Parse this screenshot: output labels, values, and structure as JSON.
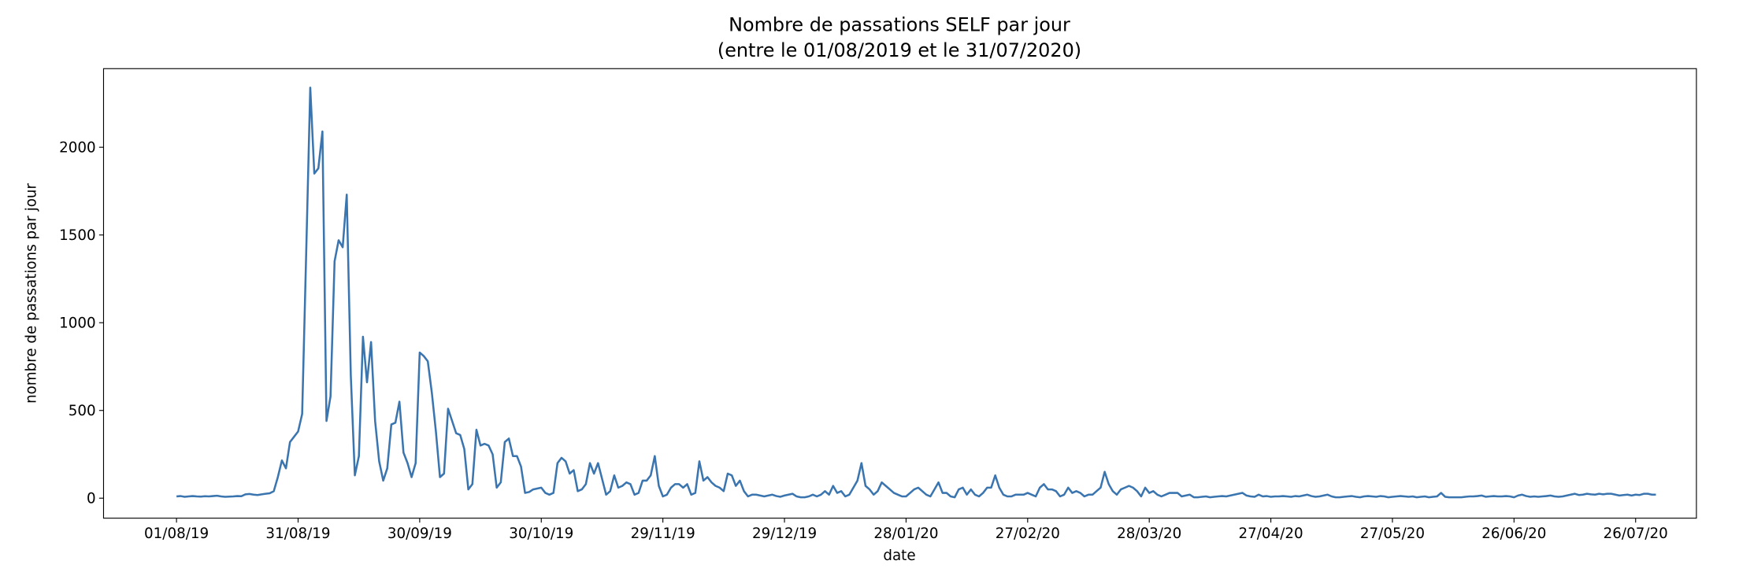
{
  "chart_data": {
    "type": "line",
    "title": "Nombre de passations SELF par jour",
    "subtitle": "(entre le 01/08/2019 et le 31/07/2020)",
    "xlabel": "date",
    "ylabel": "nombre de passations par jour",
    "color": "#3b75af",
    "xlim": [
      "2019-07-14",
      "2020-08-10"
    ],
    "ylim": [
      -114,
      2448
    ],
    "yticks": [
      0,
      500,
      1000,
      1500,
      2000
    ],
    "xticks": [
      {
        "value": "2019-08-01",
        "label": "01/08/19"
      },
      {
        "value": "2019-08-31",
        "label": "31/08/19"
      },
      {
        "value": "2019-09-30",
        "label": "30/09/19"
      },
      {
        "value": "2019-10-30",
        "label": "30/10/19"
      },
      {
        "value": "2019-11-29",
        "label": "29/11/19"
      },
      {
        "value": "2019-12-29",
        "label": "29/12/19"
      },
      {
        "value": "2020-01-28",
        "label": "28/01/20"
      },
      {
        "value": "2020-02-27",
        "label": "27/02/20"
      },
      {
        "value": "2020-03-28",
        "label": "28/03/20"
      },
      {
        "value": "2020-04-27",
        "label": "27/04/20"
      },
      {
        "value": "2020-05-27",
        "label": "27/05/20"
      },
      {
        "value": "2020-06-26",
        "label": "26/06/20"
      },
      {
        "value": "2020-07-26",
        "label": "26/07/20"
      }
    ],
    "x": [
      "2019-08-01",
      "2019-08-02",
      "2019-08-03",
      "2019-08-04",
      "2019-08-05",
      "2019-08-06",
      "2019-08-07",
      "2019-08-08",
      "2019-08-09",
      "2019-08-10",
      "2019-08-11",
      "2019-08-12",
      "2019-08-13",
      "2019-08-14",
      "2019-08-15",
      "2019-08-16",
      "2019-08-17",
      "2019-08-18",
      "2019-08-19",
      "2019-08-20",
      "2019-08-21",
      "2019-08-22",
      "2019-08-23",
      "2019-08-24",
      "2019-08-25",
      "2019-08-26",
      "2019-08-27",
      "2019-08-28",
      "2019-08-29",
      "2019-08-30",
      "2019-08-31",
      "2019-09-01",
      "2019-09-02",
      "2019-09-03",
      "2019-09-04",
      "2019-09-05",
      "2019-09-06",
      "2019-09-07",
      "2019-09-08",
      "2019-09-09",
      "2019-09-10",
      "2019-09-11",
      "2019-09-12",
      "2019-09-13",
      "2019-09-14",
      "2019-09-15",
      "2019-09-16",
      "2019-09-17",
      "2019-09-18",
      "2019-09-19",
      "2019-09-20",
      "2019-09-21",
      "2019-09-22",
      "2019-09-23",
      "2019-09-24",
      "2019-09-25",
      "2019-09-26",
      "2019-09-27",
      "2019-09-28",
      "2019-09-29",
      "2019-09-30",
      "2019-10-01",
      "2019-10-02",
      "2019-10-03",
      "2019-10-04",
      "2019-10-05",
      "2019-10-06",
      "2019-10-07",
      "2019-10-08",
      "2019-10-09",
      "2019-10-10",
      "2019-10-11",
      "2019-10-12",
      "2019-10-13",
      "2019-10-14",
      "2019-10-15",
      "2019-10-16",
      "2019-10-17",
      "2019-10-18",
      "2019-10-19",
      "2019-10-20",
      "2019-10-21",
      "2019-10-22",
      "2019-10-23",
      "2019-10-24",
      "2019-10-25",
      "2019-10-26",
      "2019-10-27",
      "2019-10-28",
      "2019-10-29",
      "2019-10-30",
      "2019-10-31",
      "2019-11-01",
      "2019-11-02",
      "2019-11-03",
      "2019-11-04",
      "2019-11-05",
      "2019-11-06",
      "2019-11-07",
      "2019-11-08",
      "2019-11-09",
      "2019-11-10",
      "2019-11-11",
      "2019-11-12",
      "2019-11-13",
      "2019-11-14",
      "2019-11-15",
      "2019-11-16",
      "2019-11-17",
      "2019-11-18",
      "2019-11-19",
      "2019-11-20",
      "2019-11-21",
      "2019-11-22",
      "2019-11-23",
      "2019-11-24",
      "2019-11-25",
      "2019-11-26",
      "2019-11-27",
      "2019-11-28",
      "2019-11-29",
      "2019-11-30",
      "2019-12-01",
      "2019-12-02",
      "2019-12-03",
      "2019-12-04",
      "2019-12-05",
      "2019-12-06",
      "2019-12-07",
      "2019-12-08",
      "2019-12-09",
      "2019-12-10",
      "2019-12-11",
      "2019-12-12",
      "2019-12-13",
      "2019-12-14",
      "2019-12-15",
      "2019-12-16",
      "2019-12-17",
      "2019-12-18",
      "2019-12-19",
      "2019-12-20",
      "2019-12-21",
      "2019-12-22",
      "2019-12-23",
      "2019-12-24",
      "2019-12-25",
      "2019-12-26",
      "2019-12-27",
      "2019-12-28",
      "2019-12-29",
      "2019-12-30",
      "2019-12-31",
      "2020-01-01",
      "2020-01-02",
      "2020-01-03",
      "2020-01-04",
      "2020-01-05",
      "2020-01-06",
      "2020-01-07",
      "2020-01-08",
      "2020-01-09",
      "2020-01-10",
      "2020-01-11",
      "2020-01-12",
      "2020-01-13",
      "2020-01-14",
      "2020-01-15",
      "2020-01-16",
      "2020-01-17",
      "2020-01-18",
      "2020-01-19",
      "2020-01-20",
      "2020-01-21",
      "2020-01-22",
      "2020-01-23",
      "2020-01-24",
      "2020-01-25",
      "2020-01-26",
      "2020-01-27",
      "2020-01-28",
      "2020-01-29",
      "2020-01-30",
      "2020-01-31",
      "2020-02-01",
      "2020-02-02",
      "2020-02-03",
      "2020-02-04",
      "2020-02-05",
      "2020-02-06",
      "2020-02-07",
      "2020-02-08",
      "2020-02-09",
      "2020-02-10",
      "2020-02-11",
      "2020-02-12",
      "2020-02-13",
      "2020-02-14",
      "2020-02-15",
      "2020-02-16",
      "2020-02-17",
      "2020-02-18",
      "2020-02-19",
      "2020-02-20",
      "2020-02-21",
      "2020-02-22",
      "2020-02-23",
      "2020-02-24",
      "2020-02-25",
      "2020-02-26",
      "2020-02-27",
      "2020-02-28",
      "2020-02-29",
      "2020-03-01",
      "2020-03-02",
      "2020-03-03",
      "2020-03-04",
      "2020-03-05",
      "2020-03-06",
      "2020-03-07",
      "2020-03-08",
      "2020-03-09",
      "2020-03-10",
      "2020-03-11",
      "2020-03-12",
      "2020-03-13",
      "2020-03-14",
      "2020-03-15",
      "2020-03-16",
      "2020-03-17",
      "2020-03-18",
      "2020-03-19",
      "2020-03-20",
      "2020-03-21",
      "2020-03-22",
      "2020-03-23",
      "2020-03-24",
      "2020-03-25",
      "2020-03-26",
      "2020-03-27",
      "2020-03-28",
      "2020-03-29",
      "2020-03-30",
      "2020-03-31",
      "2020-04-01",
      "2020-04-02",
      "2020-04-03",
      "2020-04-04",
      "2020-04-05",
      "2020-04-06",
      "2020-04-07",
      "2020-04-08",
      "2020-04-09",
      "2020-04-10",
      "2020-04-11",
      "2020-04-12",
      "2020-04-13",
      "2020-04-14",
      "2020-04-15",
      "2020-04-16",
      "2020-04-17",
      "2020-04-18",
      "2020-04-19",
      "2020-04-20",
      "2020-04-21",
      "2020-04-22",
      "2020-04-23",
      "2020-04-24",
      "2020-04-25",
      "2020-04-26",
      "2020-04-27",
      "2020-04-28",
      "2020-04-29",
      "2020-04-30",
      "2020-05-01",
      "2020-05-02",
      "2020-05-03",
      "2020-05-04",
      "2020-05-05",
      "2020-05-06",
      "2020-05-07",
      "2020-05-08",
      "2020-05-09",
      "2020-05-10",
      "2020-05-11",
      "2020-05-12",
      "2020-05-13",
      "2020-05-14",
      "2020-05-15",
      "2020-05-16",
      "2020-05-17",
      "2020-05-18",
      "2020-05-19",
      "2020-05-20",
      "2020-05-21",
      "2020-05-22",
      "2020-05-23",
      "2020-05-24",
      "2020-05-25",
      "2020-05-26",
      "2020-05-27",
      "2020-05-28",
      "2020-05-29",
      "2020-05-30",
      "2020-05-31",
      "2020-06-01",
      "2020-06-02",
      "2020-06-03",
      "2020-06-04",
      "2020-06-05",
      "2020-06-06",
      "2020-06-07",
      "2020-06-08",
      "2020-06-09",
      "2020-06-10",
      "2020-06-11",
      "2020-06-12",
      "2020-06-13",
      "2020-06-14",
      "2020-06-15",
      "2020-06-16",
      "2020-06-17",
      "2020-06-18",
      "2020-06-19",
      "2020-06-20",
      "2020-06-21",
      "2020-06-22",
      "2020-06-23",
      "2020-06-24",
      "2020-06-25",
      "2020-06-26",
      "2020-06-27",
      "2020-06-28",
      "2020-06-29",
      "2020-06-30",
      "2020-07-01",
      "2020-07-02",
      "2020-07-03",
      "2020-07-04",
      "2020-07-05",
      "2020-07-06",
      "2020-07-07",
      "2020-07-08",
      "2020-07-09",
      "2020-07-10",
      "2020-07-11",
      "2020-07-12",
      "2020-07-13",
      "2020-07-14",
      "2020-07-15",
      "2020-07-16",
      "2020-07-17",
      "2020-07-18",
      "2020-07-19",
      "2020-07-20",
      "2020-07-21",
      "2020-07-22",
      "2020-07-23",
      "2020-07-24",
      "2020-07-25",
      "2020-07-26",
      "2020-07-27",
      "2020-07-28",
      "2020-07-29",
      "2020-07-30",
      "2020-07-31"
    ],
    "values": [
      10,
      12,
      8,
      10,
      12,
      10,
      9,
      11,
      10,
      12,
      14,
      10,
      8,
      9,
      10,
      12,
      11,
      22,
      24,
      20,
      18,
      22,
      25,
      28,
      40,
      120,
      215,
      170,
      320,
      350,
      380,
      480,
      1400,
      2340,
      1850,
      1880,
      2090,
      440,
      580,
      1350,
      1470,
      1430,
      1730,
      700,
      130,
      240,
      920,
      660,
      890,
      440,
      210,
      100,
      170,
      420,
      430,
      550,
      260,
      200,
      120,
      200,
      830,
      810,
      780,
      600,
      380,
      120,
      140,
      510,
      440,
      370,
      360,
      280,
      50,
      80,
      390,
      300,
      310,
      300,
      250,
      60,
      90,
      320,
      340,
      240,
      240,
      180,
      30,
      35,
      50,
      55,
      60,
      30,
      20,
      30,
      200,
      230,
      210,
      140,
      160,
      40,
      50,
      80,
      200,
      140,
      200,
      110,
      20,
      40,
      130,
      60,
      70,
      90,
      80,
      20,
      30,
      100,
      100,
      130,
      240,
      70,
      10,
      20,
      60,
      80,
      80,
      60,
      80,
      20,
      30,
      210,
      100,
      120,
      90,
      70,
      60,
      40,
      140,
      130,
      70,
      100,
      40,
      10,
      20,
      20,
      15,
      10,
      15,
      20,
      12,
      8,
      15,
      20,
      25,
      10,
      5,
      5,
      10,
      20,
      10,
      20,
      40,
      20,
      70,
      30,
      40,
      10,
      20,
      60,
      100,
      200,
      70,
      50,
      20,
      40,
      90,
      70,
      50,
      30,
      20,
      10,
      10,
      30,
      50,
      60,
      40,
      20,
      10,
      50,
      90,
      30,
      30,
      10,
      5,
      50,
      60,
      20,
      50,
      20,
      10,
      30,
      60,
      60,
      130,
      60,
      20,
      10,
      10,
      20,
      20,
      20,
      30,
      20,
      10,
      60,
      80,
      50,
      50,
      40,
      10,
      20,
      60,
      30,
      40,
      30,
      10,
      20,
      20,
      40,
      60,
      150,
      80,
      40,
      20,
      50,
      60,
      70,
      60,
      40,
      10,
      60,
      30,
      40,
      20,
      10,
      20,
      30,
      30,
      30,
      10,
      15,
      20,
      5,
      5,
      8,
      10,
      5,
      8,
      10,
      12,
      10,
      15,
      20,
      25,
      30,
      15,
      10,
      8,
      20,
      10,
      12,
      8,
      10,
      10,
      12,
      10,
      8,
      12,
      10,
      15,
      20,
      12,
      8,
      10,
      15,
      20,
      10,
      5,
      5,
      8,
      10,
      12,
      8,
      5,
      10,
      12,
      10,
      8,
      12,
      10,
      5,
      8,
      10,
      12,
      10,
      8,
      10,
      5,
      8,
      10,
      5,
      8,
      10,
      30,
      8,
      5,
      5,
      5,
      5,
      8,
      10,
      10,
      12,
      15,
      8,
      10,
      12,
      10,
      10,
      12,
      10,
      5,
      15,
      20,
      12,
      8,
      10,
      8,
      10,
      12,
      15,
      10,
      8,
      10,
      15,
      20,
      25,
      18,
      20,
      25,
      22,
      20,
      25,
      22,
      25,
      25,
      20,
      15,
      18,
      20,
      15,
      20,
      18,
      25,
      25,
      20,
      20
    ]
  }
}
